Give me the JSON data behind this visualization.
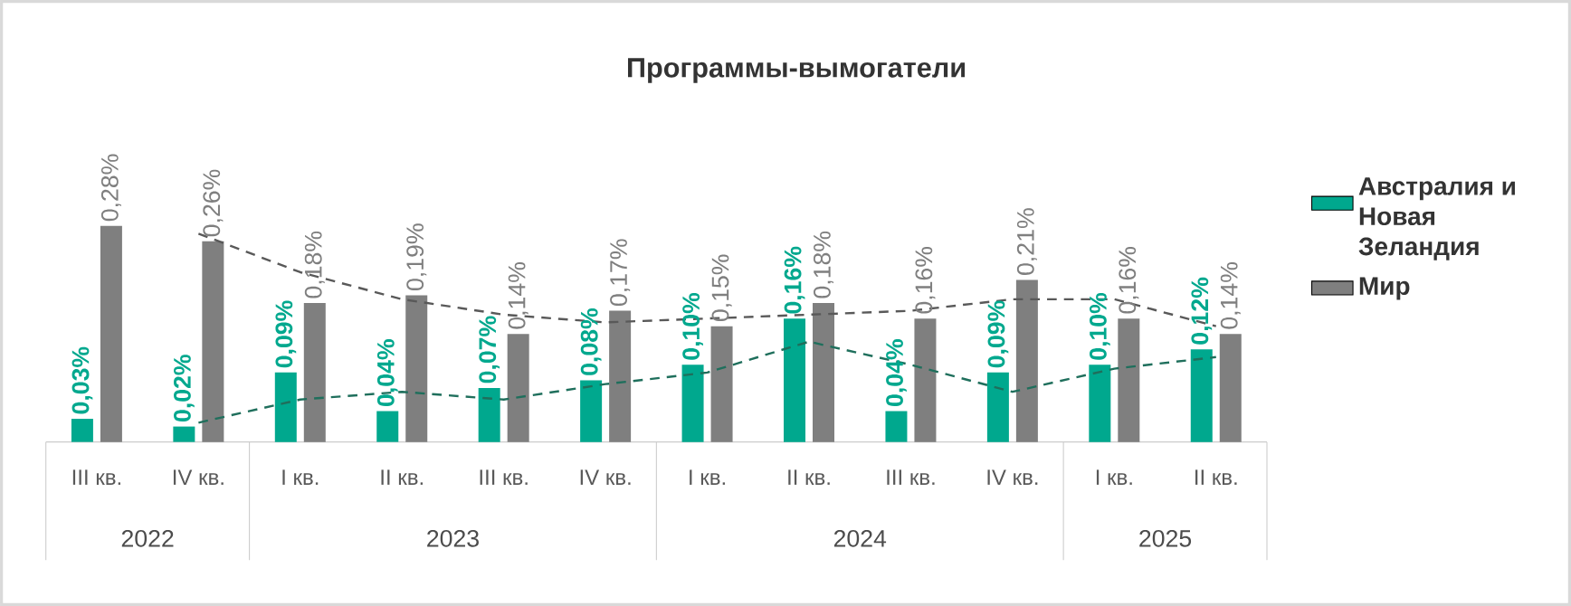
{
  "chart_data": {
    "type": "bar",
    "title": "Программы-вымогатели",
    "categories": [
      "III кв.",
      "IV кв.",
      "I кв.",
      "II кв.",
      "III кв.",
      "IV кв.",
      "I кв.",
      "II кв.",
      "III кв.",
      "IV кв.",
      "I кв.",
      "II кв."
    ],
    "series": [
      {
        "name": "Австралия и Новая Зеландия",
        "color": "#00a88e",
        "values": [
          0.03,
          0.02,
          0.09,
          0.04,
          0.07,
          0.08,
          0.1,
          0.16,
          0.04,
          0.09,
          0.1,
          0.12
        ],
        "value_labels": [
          "0,03%",
          "0,02%",
          "0,09%",
          "0,04%",
          "0,07%",
          "0,08%",
          "0,10%",
          "0,16%",
          "0,04%",
          "0,09%",
          "0,10%",
          "0,12%"
        ]
      },
      {
        "name": "Мир",
        "color": "#7f7f7f",
        "values": [
          0.28,
          0.26,
          0.18,
          0.19,
          0.14,
          0.17,
          0.15,
          0.18,
          0.16,
          0.21,
          0.16,
          0.14
        ],
        "value_labels": [
          "0,28%",
          "0,26%",
          "0,18%",
          "0,19%",
          "0,14%",
          "0,17%",
          "0,15%",
          "0,18%",
          "0,16%",
          "0,21%",
          "0,16%",
          "0,14%"
        ]
      },
      {
        "type": "line",
        "color": "#1f6f5c",
        "line_style": "dashed",
        "marker": "none",
        "values": [
          null,
          0.025,
          0.055,
          0.065,
          0.055,
          0.075,
          0.09,
          0.13,
          0.1,
          0.065,
          0.095,
          0.11
        ]
      },
      {
        "type": "line",
        "color": "#595959",
        "line_style": "dashed",
        "marker": "none",
        "values": [
          null,
          0.27,
          0.22,
          0.185,
          0.165,
          0.155,
          0.16,
          0.165,
          0.17,
          0.185,
          0.185,
          0.15
        ]
      }
    ],
    "annotations": [
      "2022",
      "2023",
      "2024",
      "2025"
    ],
    "legend": "right"
  }
}
